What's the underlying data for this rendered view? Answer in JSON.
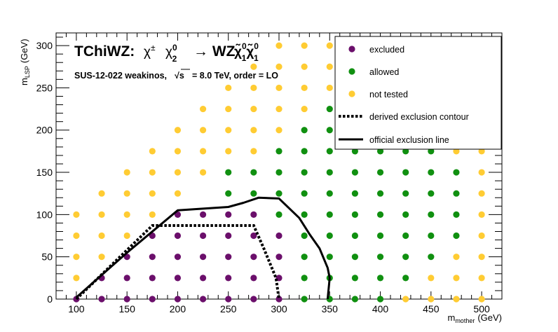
{
  "chart_data": {
    "type": "scatter",
    "title": "TChiWZ:",
    "title_decay_prefix": "→ WZ",
    "subtitle": {
      "analysis": "SUS-12-022  weakinos,",
      "energy_value": "=  8.0 TeV, order =  LO",
      "sqrt_s_label": "√s"
    },
    "xlabel": "m",
    "xlabel_subscript": "mother",
    "xlabel_unit": "(GeV)",
    "ylabel": "m",
    "ylabel_subscript": "LSP",
    "ylabel_unit": "(GeV)",
    "xlim": [
      80,
      520
    ],
    "ylim": [
      0,
      315
    ],
    "x_ticks": [
      100,
      150,
      200,
      250,
      300,
      350,
      400,
      450,
      500
    ],
    "y_ticks": [
      0,
      50,
      100,
      150,
      200,
      250,
      300
    ],
    "legend_position": "top-right",
    "colors": {
      "excluded": "#6b0f6b",
      "allowed": "#109010",
      "not_tested": "#ffcc33",
      "line": "#000000"
    },
    "series": [
      {
        "name": "excluded",
        "points": [
          [
            100,
            0
          ],
          [
            125,
            0
          ],
          [
            150,
            0
          ],
          [
            175,
            0
          ],
          [
            200,
            0
          ],
          [
            225,
            0
          ],
          [
            250,
            0
          ],
          [
            275,
            0
          ],
          [
            300,
            0
          ],
          [
            125,
            25
          ],
          [
            150,
            25
          ],
          [
            175,
            25
          ],
          [
            200,
            25
          ],
          [
            225,
            25
          ],
          [
            250,
            25
          ],
          [
            275,
            25
          ],
          [
            300,
            25
          ],
          [
            150,
            50
          ],
          [
            175,
            50
          ],
          [
            200,
            50
          ],
          [
            225,
            50
          ],
          [
            250,
            50
          ],
          [
            275,
            50
          ],
          [
            300,
            50
          ],
          [
            175,
            75
          ],
          [
            200,
            75
          ],
          [
            225,
            75
          ],
          [
            250,
            75
          ],
          [
            275,
            75
          ],
          [
            300,
            75
          ],
          [
            200,
            100
          ],
          [
            225,
            100
          ],
          [
            250,
            100
          ],
          [
            275,
            100
          ]
        ]
      },
      {
        "name": "allowed",
        "points": [
          [
            325,
            0
          ],
          [
            350,
            0
          ],
          [
            375,
            0
          ],
          [
            400,
            0
          ],
          [
            325,
            25
          ],
          [
            350,
            25
          ],
          [
            375,
            25
          ],
          [
            400,
            25
          ],
          [
            425,
            25
          ],
          [
            325,
            50
          ],
          [
            350,
            50
          ],
          [
            375,
            50
          ],
          [
            400,
            50
          ],
          [
            425,
            50
          ],
          [
            450,
            50
          ],
          [
            325,
            75
          ],
          [
            350,
            75
          ],
          [
            375,
            75
          ],
          [
            400,
            75
          ],
          [
            425,
            75
          ],
          [
            450,
            75
          ],
          [
            475,
            75
          ],
          [
            300,
            100
          ],
          [
            325,
            100
          ],
          [
            350,
            100
          ],
          [
            375,
            100
          ],
          [
            400,
            100
          ],
          [
            425,
            100
          ],
          [
            450,
            100
          ],
          [
            475,
            100
          ],
          [
            250,
            125
          ],
          [
            275,
            125
          ],
          [
            300,
            125
          ],
          [
            325,
            125
          ],
          [
            350,
            125
          ],
          [
            375,
            125
          ],
          [
            400,
            125
          ],
          [
            425,
            125
          ],
          [
            450,
            125
          ],
          [
            475,
            125
          ],
          [
            250,
            150
          ],
          [
            275,
            150
          ],
          [
            300,
            150
          ],
          [
            325,
            150
          ],
          [
            350,
            150
          ],
          [
            375,
            150
          ],
          [
            400,
            150
          ],
          [
            425,
            150
          ],
          [
            450,
            150
          ],
          [
            475,
            150
          ],
          [
            300,
            175
          ],
          [
            325,
            175
          ],
          [
            350,
            175
          ],
          [
            375,
            175
          ],
          [
            400,
            175
          ],
          [
            425,
            175
          ],
          [
            450,
            175
          ],
          [
            325,
            200
          ],
          [
            350,
            200
          ],
          [
            375,
            200
          ],
          [
            400,
            200
          ],
          [
            425,
            200
          ],
          [
            450,
            200
          ],
          [
            350,
            225
          ],
          [
            375,
            225
          ],
          [
            400,
            225
          ],
          [
            425,
            225
          ],
          [
            450,
            225
          ],
          [
            375,
            250
          ],
          [
            400,
            250
          ],
          [
            425,
            250
          ],
          [
            450,
            250
          ],
          [
            425,
            275
          ],
          [
            450,
            275
          ]
        ]
      },
      {
        "name": "not tested",
        "points": [
          [
            100,
            25
          ],
          [
            100,
            50
          ],
          [
            100,
            75
          ],
          [
            100,
            100
          ],
          [
            125,
            50
          ],
          [
            125,
            75
          ],
          [
            125,
            100
          ],
          [
            125,
            125
          ],
          [
            150,
            75
          ],
          [
            150,
            100
          ],
          [
            150,
            125
          ],
          [
            150,
            150
          ],
          [
            175,
            100
          ],
          [
            175,
            125
          ],
          [
            175,
            150
          ],
          [
            175,
            175
          ],
          [
            200,
            125
          ],
          [
            200,
            150
          ],
          [
            200,
            175
          ],
          [
            200,
            200
          ],
          [
            225,
            150
          ],
          [
            225,
            175
          ],
          [
            225,
            200
          ],
          [
            225,
            225
          ],
          [
            250,
            175
          ],
          [
            250,
            200
          ],
          [
            250,
            225
          ],
          [
            250,
            250
          ],
          [
            275,
            175
          ],
          [
            275,
            200
          ],
          [
            275,
            225
          ],
          [
            275,
            250
          ],
          [
            275,
            275
          ],
          [
            300,
            200
          ],
          [
            300,
            225
          ],
          [
            300,
            250
          ],
          [
            300,
            275
          ],
          [
            300,
            300
          ],
          [
            325,
            225
          ],
          [
            325,
            250
          ],
          [
            325,
            275
          ],
          [
            325,
            300
          ],
          [
            350,
            250
          ],
          [
            350,
            275
          ],
          [
            350,
            300
          ],
          [
            375,
            275
          ],
          [
            375,
            300
          ],
          [
            400,
            300
          ],
          [
            425,
            300
          ],
          [
            450,
            300
          ],
          [
            475,
            300
          ],
          [
            500,
            300
          ],
          [
            425,
            0
          ],
          [
            450,
            0
          ],
          [
            475,
            0
          ],
          [
            500,
            0
          ],
          [
            450,
            25
          ],
          [
            475,
            25
          ],
          [
            500,
            25
          ],
          [
            475,
            50
          ],
          [
            500,
            50
          ],
          [
            500,
            75
          ],
          [
            500,
            100
          ],
          [
            500,
            125
          ],
          [
            500,
            150
          ],
          [
            475,
            175
          ],
          [
            500,
            175
          ],
          [
            475,
            200
          ],
          [
            500,
            200
          ]
        ]
      }
    ],
    "derived_contour": [
      [
        100,
        0
      ],
      [
        175,
        87
      ],
      [
        275,
        87
      ],
      [
        285,
        60
      ],
      [
        297,
        25
      ],
      [
        300,
        0
      ]
    ],
    "official_line": [
      [
        100,
        2
      ],
      [
        150,
        55
      ],
      [
        200,
        105
      ],
      [
        225,
        107
      ],
      [
        250,
        109
      ],
      [
        265,
        114
      ],
      [
        280,
        120
      ],
      [
        300,
        119
      ],
      [
        320,
        96
      ],
      [
        330,
        77
      ],
      [
        340,
        60
      ],
      [
        348,
        37
      ],
      [
        350,
        25
      ],
      [
        348,
        0
      ]
    ],
    "legend": [
      {
        "label": "excluded",
        "kind": "marker",
        "color": "#6b0f6b"
      },
      {
        "label": "allowed",
        "kind": "marker",
        "color": "#109010"
      },
      {
        "label": "not tested",
        "kind": "marker",
        "color": "#ffcc33"
      },
      {
        "label": "derived exclusion contour",
        "kind": "dotted-line",
        "color": "#000000"
      },
      {
        "label": "official exclusion line",
        "kind": "solid-line",
        "color": "#000000"
      }
    ]
  }
}
